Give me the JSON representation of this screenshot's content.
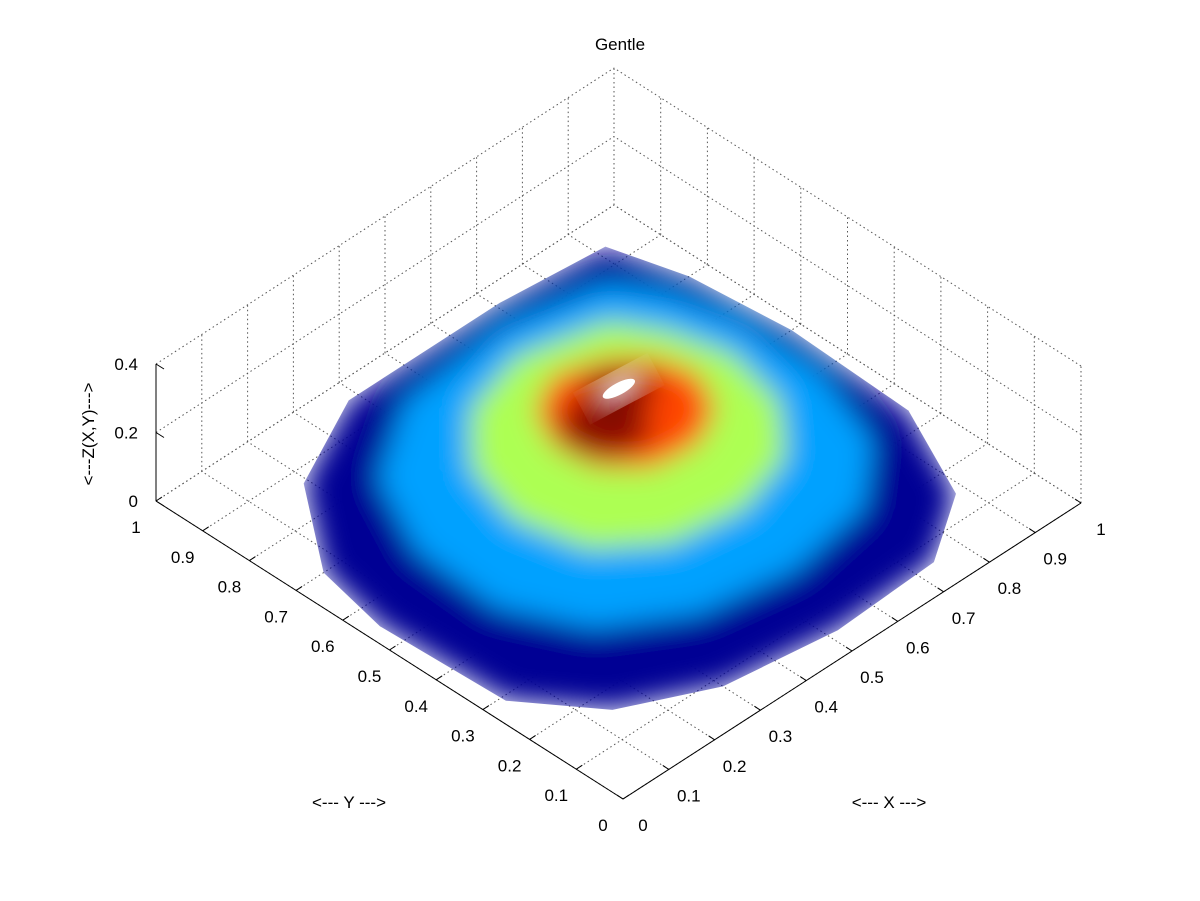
{
  "chart_data": {
    "type": "surface3d",
    "title": "Gentle",
    "xlabel": "<--- X --->",
    "ylabel": "<--- Y --->",
    "zlabel": "<---Z(X,Y)--->",
    "xlim": [
      0,
      1
    ],
    "ylim": [
      0,
      1
    ],
    "zlim": [
      0,
      0.4
    ],
    "xticks": [
      "0",
      "0.1",
      "0.2",
      "0.3",
      "0.4",
      "0.5",
      "0.6",
      "0.7",
      "0.8",
      "0.9",
      "1"
    ],
    "yticks": [
      "0",
      "0.1",
      "0.2",
      "0.3",
      "0.4",
      "0.5",
      "0.6",
      "0.7",
      "0.8",
      "0.9",
      "1"
    ],
    "zticks": [
      "0",
      "0.2",
      "0.4"
    ],
    "grid": true,
    "colormap": "jet",
    "surface": {
      "rings": [
        {
          "z": 0.0,
          "points": [
            [
              0.92,
              0.94
            ],
            [
              0.71,
              0.96
            ],
            [
              0.38,
              0.96
            ],
            [
              0.19,
              0.87
            ],
            [
              0.06,
              0.7
            ],
            [
              0.03,
              0.55
            ],
            [
              0.04,
              0.29
            ],
            [
              0.14,
              0.16
            ],
            [
              0.3,
              0.08
            ],
            [
              0.52,
              0.05
            ],
            [
              0.74,
              0.06
            ],
            [
              0.88,
              0.15
            ],
            [
              0.97,
              0.34
            ],
            [
              0.98,
              0.6
            ],
            [
              0.96,
              0.8
            ]
          ]
        },
        {
          "z": 0.1,
          "points": [
            [
              0.8,
              0.82
            ],
            [
              0.62,
              0.86
            ],
            [
              0.38,
              0.84
            ],
            [
              0.22,
              0.74
            ],
            [
              0.14,
              0.58
            ],
            [
              0.13,
              0.4
            ],
            [
              0.2,
              0.26
            ],
            [
              0.34,
              0.17
            ],
            [
              0.52,
              0.14
            ],
            [
              0.7,
              0.17
            ],
            [
              0.82,
              0.27
            ],
            [
              0.88,
              0.44
            ],
            [
              0.88,
              0.62
            ],
            [
              0.85,
              0.74
            ]
          ]
        },
        {
          "z": 0.2,
          "points": [
            [
              0.68,
              0.7
            ],
            [
              0.52,
              0.74
            ],
            [
              0.38,
              0.7
            ],
            [
              0.28,
              0.6
            ],
            [
              0.24,
              0.47
            ],
            [
              0.27,
              0.34
            ],
            [
              0.37,
              0.26
            ],
            [
              0.51,
              0.24
            ],
            [
              0.64,
              0.28
            ],
            [
              0.73,
              0.38
            ],
            [
              0.76,
              0.51
            ],
            [
              0.73,
              0.62
            ]
          ]
        },
        {
          "z": 0.3,
          "points": [
            [
              0.56,
              0.58
            ],
            [
              0.47,
              0.61
            ],
            [
              0.39,
              0.57
            ],
            [
              0.35,
              0.49
            ],
            [
              0.36,
              0.41
            ],
            [
              0.42,
              0.35
            ],
            [
              0.51,
              0.34
            ],
            [
              0.59,
              0.38
            ],
            [
              0.63,
              0.46
            ],
            [
              0.61,
              0.53
            ]
          ]
        },
        {
          "z": 0.37,
          "points": [
            [
              0.5,
              0.52
            ],
            [
              0.45,
              0.53
            ],
            [
              0.42,
              0.49
            ],
            [
              0.43,
              0.44
            ],
            [
              0.47,
              0.42
            ],
            [
              0.52,
              0.43
            ],
            [
              0.54,
              0.47
            ]
          ]
        }
      ],
      "peak": {
        "x": 0.46,
        "y": 0.46,
        "z": 0.4
      }
    },
    "colors": {
      "low": "#00008f",
      "mid": "#00ffff",
      "high": "#ff0000",
      "peak": "#ffffff",
      "grid": "#555555"
    }
  }
}
